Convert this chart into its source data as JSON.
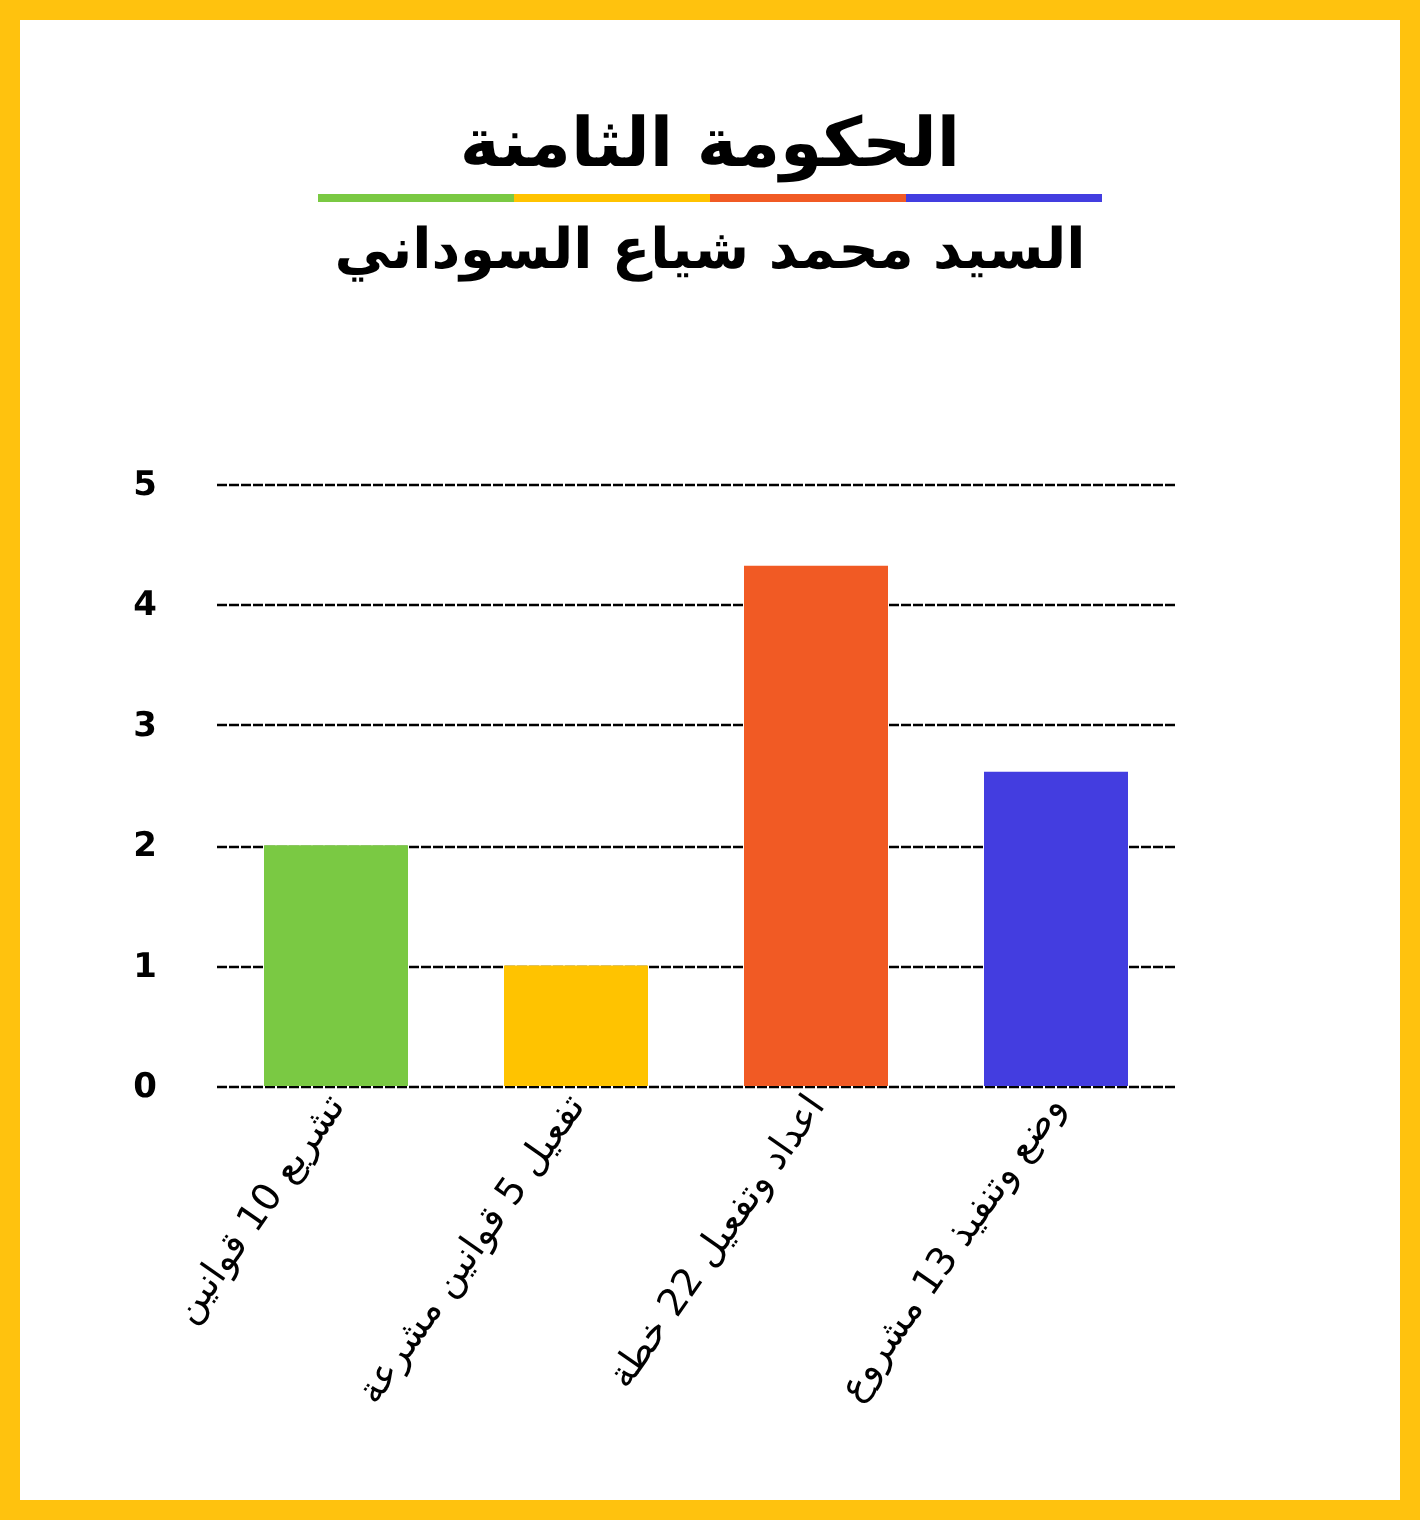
{
  "chart_data": {
    "type": "bar",
    "title": "الحكومة الثامنة",
    "subtitle": "السيد محمد شياع السوداني",
    "categories": [
      "تشريع 10 قوانين",
      "تفعيل 5 قوانين مشرعة",
      "اعداد وتفعيل 22 خطة",
      "وضع وتنفيذ 13 مشروع"
    ],
    "values": [
      2,
      1,
      4.32,
      2.61
    ],
    "colors": [
      "#7ac943",
      "#ffc300",
      "#f15a24",
      "#433de0"
    ],
    "ylim": [
      0,
      5
    ],
    "yticks": [
      0,
      1,
      2,
      3,
      4,
      5
    ],
    "grid": "y",
    "legend": false
  }
}
